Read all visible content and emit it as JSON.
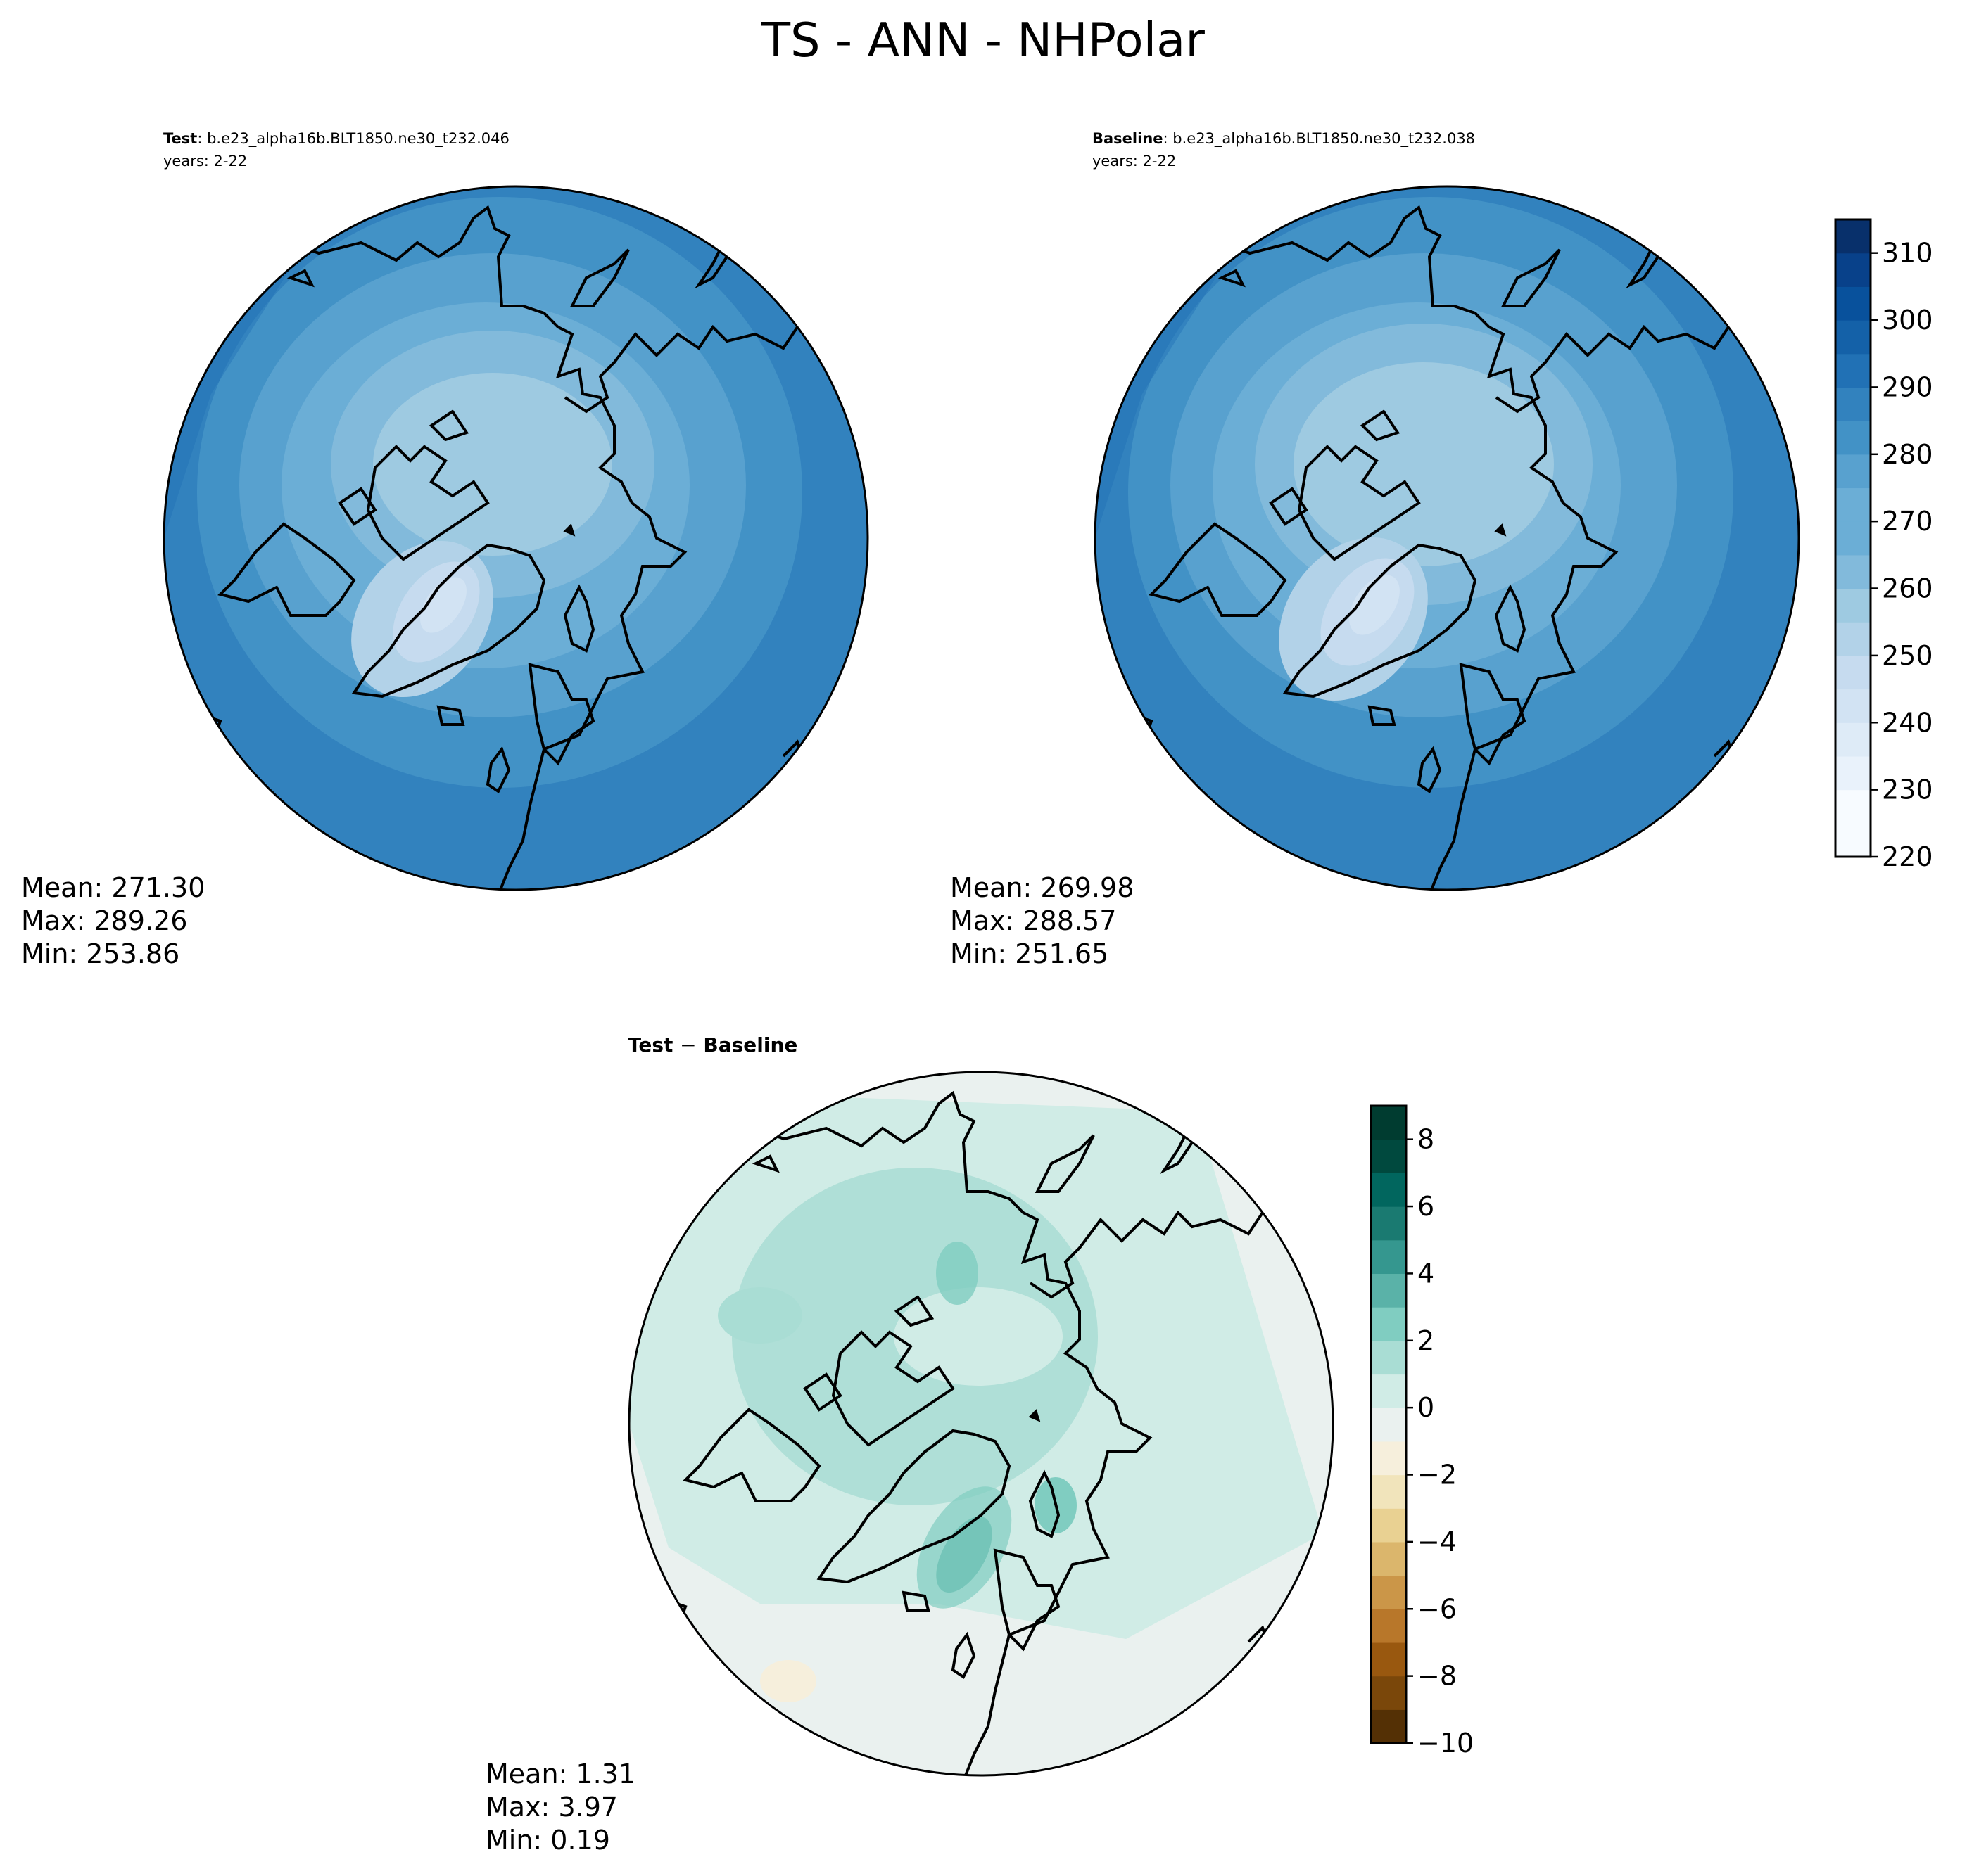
{
  "figure": {
    "title": "TS - ANN - NHPolar"
  },
  "panels": {
    "test": {
      "label": "Test",
      "case": ": b.e23_alpha16b.BLT1850.ne30_t232.046",
      "years": "years: 2-22",
      "stats": {
        "mean": "Mean: 271.30",
        "max": "Max: 289.26",
        "min": "Min: 253.86"
      }
    },
    "baseline": {
      "label": "Baseline",
      "case": ": b.e23_alpha16b.BLT1850.ne30_t232.038",
      "years": "years: 2-22",
      "stats": {
        "mean": "Mean: 269.98",
        "max": "Max: 288.57",
        "min": "Min: 251.65"
      }
    },
    "diff": {
      "label_a": "Test",
      "label_sep": "−",
      "label_b": "Baseline",
      "stats": {
        "mean": "Mean:  1.31",
        "max": "Max:  3.97",
        "min": "Min:  0.19"
      }
    }
  },
  "colors": {
    "blues": [
      "#f7fbff",
      "#e9f2fb",
      "#deebf7",
      "#d2e3f3",
      "#c6dbef",
      "#b2d2e8",
      "#9ecae1",
      "#82badb",
      "#6baed6",
      "#58a1cf",
      "#4292c6",
      "#3282be",
      "#2171b5",
      "#1461a8",
      "#08519c",
      "#08418a",
      "#08306b"
    ],
    "diverging": [
      "#543005",
      "#7a470a",
      "#99580f",
      "#b8772a",
      "#cb9648",
      "#dbb66c",
      "#e9d192",
      "#f1e4bb",
      "#f6efdc",
      "#eaf1ef",
      "#d0ece6",
      "#a9ddd4",
      "#80cdc1",
      "#5ab2a8",
      "#35978f",
      "#1a7a71",
      "#01665e",
      "#00493e",
      "#003c30"
    ]
  },
  "chart_data": [
    {
      "type": "heatmap",
      "name": "Test",
      "projection": "north polar stereographic",
      "variable": "TS",
      "season": "ANN",
      "region": "NHPolar",
      "mean": 271.3,
      "max": 289.26,
      "min": 253.86,
      "colorbar": {
        "levels_min": 220,
        "levels_max": 315,
        "step": 5
      }
    },
    {
      "type": "heatmap",
      "name": "Baseline",
      "projection": "north polar stereographic",
      "mean": 269.98,
      "max": 288.57,
      "min": 251.65,
      "colorbar": {
        "vmin": 220,
        "vmax": 315,
        "step": 5,
        "ticks": [
          220,
          230,
          240,
          250,
          260,
          270,
          280,
          290,
          300,
          310
        ],
        "tick_labels": [
          "220",
          "230",
          "240",
          "250",
          "260",
          "270",
          "280",
          "290",
          "300",
          "310"
        ]
      }
    },
    {
      "type": "heatmap",
      "name": "Test − Baseline",
      "projection": "north polar stereographic",
      "mean": 1.31,
      "max": 3.97,
      "min": 0.19,
      "colorbar": {
        "vmin": -10,
        "vmax": 9,
        "step": 1,
        "ticks": [
          -10,
          -8,
          -6,
          -4,
          -2,
          0,
          2,
          4,
          6,
          8
        ],
        "tick_labels": [
          "−10",
          "−8",
          "−6",
          "−4",
          "−2",
          "0",
          "2",
          "4",
          "6",
          "8"
        ]
      }
    }
  ]
}
